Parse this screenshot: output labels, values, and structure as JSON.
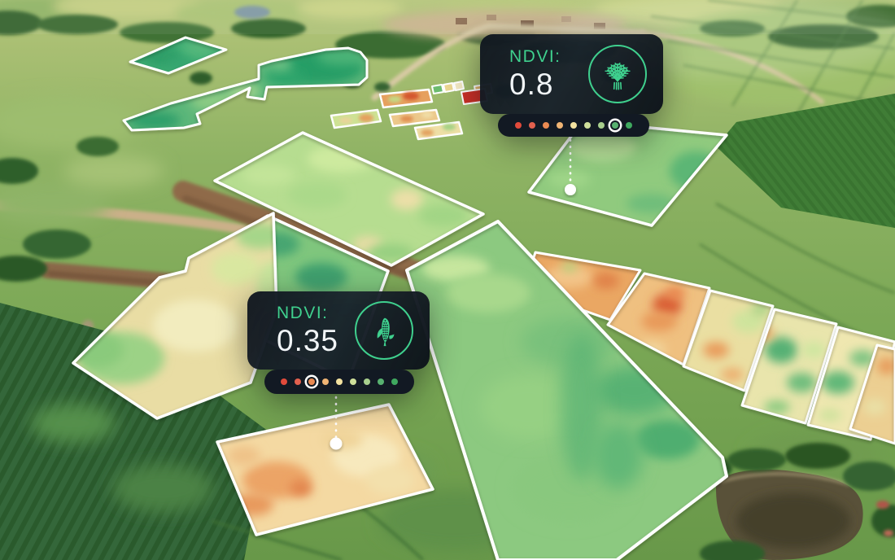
{
  "cards": [
    {
      "label": "NDVI:",
      "value": "0.8",
      "crop_icon": "wheat-icon",
      "selected_dot_index": 7
    },
    {
      "label": "NDVI:",
      "value": "0.35",
      "crop_icon": "corn-icon",
      "selected_dot_index": 2
    }
  ],
  "ndvi_scale": {
    "dot_colors": [
      "#e14a3b",
      "#e3604e",
      "#ea8a52",
      "#f0b474",
      "#f3e2a0",
      "#cfdf9b",
      "#a8cf8d",
      "#58b170",
      "#3fa95f"
    ],
    "selected_ring_color": "#ffffff"
  },
  "colors": {
    "accent_green": "#3fd08e",
    "card_background": "#151d26",
    "pill_background": "#121923",
    "field_outline": "#ffffff",
    "value_text": "#f1f5f7"
  }
}
